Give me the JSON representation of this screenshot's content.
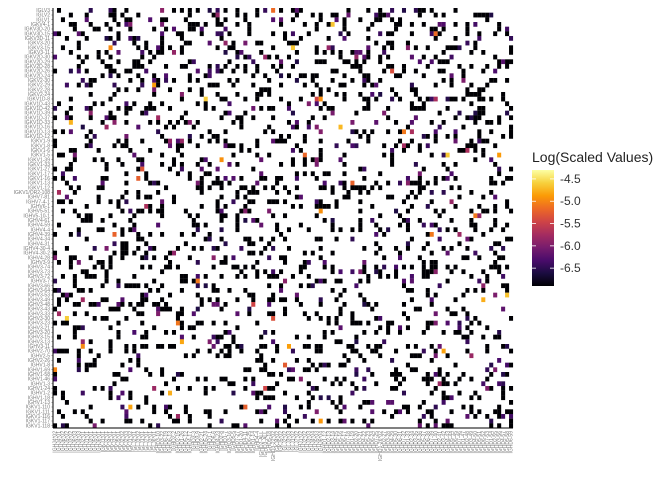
{
  "chart_data": {
    "type": "heatmap",
    "title": "",
    "xlabel": "",
    "ylabel": "",
    "row_labels": [
      "IGLV3",
      "IGLV2",
      "IGLV1",
      "IGKV4-1",
      "IGKV3D-20",
      "IGKV3D-15",
      "IGKV3D-11",
      "IGKV3-20",
      "IGKV3-15",
      "IGKV3-11",
      "IGKV2D-30",
      "IGKV2D-29",
      "IGKV2D-28",
      "IGKV2D-26",
      "IGKV2D-24",
      "IGKV2-30",
      "IGKV2-29",
      "IGKV2-28",
      "IGKV2-24",
      "IGKV1D-8",
      "IGKV1D-43",
      "IGKV1D-42",
      "IGKV1D-39",
      "IGKV1D-37",
      "IGKV1D-33",
      "IGKV1D-16",
      "IGKV1D-13",
      "IGKV1D-12",
      "IGKV1-9",
      "IGKV1-8",
      "IGKV1-6",
      "IGKV1-5",
      "IGKV1-39",
      "IGKV1-33",
      "IGKV1-27",
      "IGKV1-17",
      "IGKV1-16",
      "IGKV1-13",
      "IGKV1-12",
      "IGKV1/OR2-108",
      "IGHV7-81",
      "IGHV7-4-1",
      "IGHV6-1",
      "IGHV5-51",
      "IGHV5-10-1",
      "IGHV4-61",
      "IGHV4-59",
      "IGHV4-4",
      "IGHV4-39",
      "IGHV4-34",
      "IGHV4-31",
      "IGHV4-30-4",
      "IGHV4-30-2",
      "IGHV4-28",
      "IGHV3-9",
      "IGHV3-74",
      "IGHV3-73",
      "IGHV3-72",
      "IGHV3-7",
      "IGHV3-66",
      "IGHV3-64",
      "IGHV3-53",
      "IGHV3-49",
      "IGHV3-48",
      "IGHV3-43",
      "IGHV3-33",
      "IGHV3-30",
      "IGHV3-23",
      "IGHV3-21",
      "IGHV3-20",
      "IGHV3-15",
      "IGHV3-13",
      "IGHV3-11",
      "IGHV2-70",
      "IGHV2-5",
      "IGHV2-26",
      "IGHV1-8",
      "IGHV1-69",
      "IGHV1-58",
      "IGHV1-46",
      "IGHV1-3",
      "IGHV1-24",
      "IGHV1-2",
      "IGHV1-18",
      "IGHV1-13",
      "IGKV1-110",
      "IGKV1-111",
      "IGKV1-116",
      "IGKV1-117",
      "IGKV1-118"
    ],
    "column_labels": [
      "IGHJ4*02",
      "IGHJ4*01",
      "IGHJ6*02",
      "IGHJ5*02",
      "IGHJ3*02",
      "IGHJ6*03",
      "IGHJ4*03",
      "IGHJ2*01",
      "IGHJ1*01",
      "IGHJ3*01",
      "IGHJ5*01",
      "IGHJ6*01",
      "IGKJ1*01",
      "IGKJ2*01",
      "IGKJ4*01",
      "IGKJ3*01",
      "IGKJ5*01",
      "IGKJ2*02",
      "IGKJ2*03",
      "IGKJ1*02",
      "IGLJ2*01",
      "IGLJ3*02",
      "IGLJ1*01",
      "IGLJ7*01",
      "IGLJ3*01",
      "IGLJ6*01",
      "IGHD3-10",
      "IGHD3-22",
      "IGHD6-19",
      "IGHD6-13",
      "IGHD2-2",
      "IGHD2-15",
      "IGHD1-26",
      "IGHD5-12",
      "IGHD4-17",
      "IGHD3-3",
      "IGHD3-9",
      "IGHD2-21",
      "IGHD5-24",
      "IGHD1-1",
      "IGHD6-6",
      "IGHD4-23",
      "IGHD2-8",
      "IGHD1-7",
      "IGHD3-16",
      "IGHD5-5",
      "IGHD7-27",
      "IGHD1-20",
      "IGHD4-11",
      "IGHD6-25",
      "IGHD1-14",
      "IGHD4-4",
      "IGHD2-ALL",
      "IGHD3-ALL",
      "IGHD5-18",
      "IGHD3-22*02",
      "IGKJ4*02",
      "IGKJ5*02",
      "IGLJ2*02",
      "IGLJ3*03",
      "IGLJ1*02",
      "IGLJ7*02",
      "IGHJ1*02",
      "IGHJ2*02",
      "IGHJ3*03",
      "IGHJ4*04",
      "IGHJ5*03",
      "IGHJ6*04",
      "IGHD1-12",
      "IGHD2-13",
      "IGHD3-14",
      "IGHD4-15",
      "IGHD5-16",
      "IGHD6-17",
      "IGHD7-18",
      "IGHD1-19",
      "IGHD2-20",
      "IGHD3-21",
      "IGHD4-22",
      "IGHD5-23",
      "IGHD6-24",
      "IGHD7-25",
      "IGHD1-26*02",
      "IGHD2-27",
      "IGHD3-28",
      "IGHD4-29",
      "IGHD5-30",
      "IGHD6-31",
      "IGHD7-32",
      "IGHD1-33",
      "IGHD2-34",
      "IGHD3-35",
      "IGHD4-36",
      "IGHD5-37",
      "IGHD6-38",
      "IGHD7-39",
      "IGHD1-40",
      "IGHD2-41",
      "IGHD3-42",
      "IGHD4-43",
      "IGHD5-44",
      "IGHD6-45",
      "IGHD7-46",
      "IGHD1-47",
      "IGHD2-48",
      "IGHD3-49",
      "IGHD4-50",
      "IGHD5-51",
      "IGHD6-52",
      "IGHD7-53",
      "IGHD1-54",
      "IGHD2-55",
      "IGHD3-56",
      "IGHD4-57",
      "IGHD5-58",
      "IGHD6-59"
    ],
    "value_range": [
      -6.9,
      -4.3
    ],
    "legend": {
      "title": "Log(Scaled Values)",
      "ticks": [
        -4.5,
        -5.0,
        -5.5,
        -6.0,
        -6.5
      ],
      "placement": "right"
    },
    "grid": false,
    "colormap": [
      "#000004",
      "#1b0c41",
      "#4a0c6b",
      "#781c6d",
      "#a52c60",
      "#cf4446",
      "#ed6925",
      "#fb9b06",
      "#f7d13d",
      "#fcffa4"
    ],
    "density": 0.2,
    "seed": 20240611
  }
}
